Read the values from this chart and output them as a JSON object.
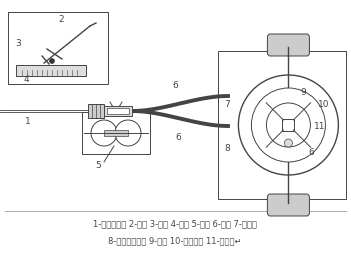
{
  "caption_line1": "1-手刹操纵杆 2-按钮 3-棘爪 4-棘轮 5-滑轮 6-钢索 7-制动鼓",
  "caption_line2": "8-驻车制动摇臂 9-轮缸 10-自调机构 11-制动蹄↵",
  "bg_color": "#ffffff",
  "line_color": "#444444",
  "label_fontsize": 6.0,
  "caption_fontsize": 6.0
}
